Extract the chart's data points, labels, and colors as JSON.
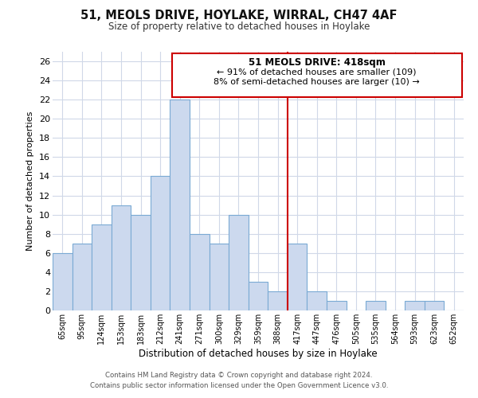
{
  "title": "51, MEOLS DRIVE, HOYLAKE, WIRRAL, CH47 4AF",
  "subtitle": "Size of property relative to detached houses in Hoylake",
  "xlabel": "Distribution of detached houses by size in Hoylake",
  "ylabel": "Number of detached properties",
  "bar_labels": [
    "65sqm",
    "95sqm",
    "124sqm",
    "153sqm",
    "183sqm",
    "212sqm",
    "241sqm",
    "271sqm",
    "300sqm",
    "329sqm",
    "359sqm",
    "388sqm",
    "417sqm",
    "447sqm",
    "476sqm",
    "505sqm",
    "535sqm",
    "564sqm",
    "593sqm",
    "623sqm",
    "652sqm"
  ],
  "bar_values": [
    6,
    7,
    9,
    11,
    10,
    14,
    22,
    8,
    7,
    10,
    3,
    2,
    7,
    2,
    1,
    0,
    1,
    0,
    1,
    1,
    0
  ],
  "bar_color": "#ccd9ee",
  "bar_edge_color": "#7aaad4",
  "property_line_color": "#cc0000",
  "ylim": [
    0,
    27
  ],
  "yticks": [
    0,
    2,
    4,
    6,
    8,
    10,
    12,
    14,
    16,
    18,
    20,
    22,
    24,
    26
  ],
  "annotation_title": "51 MEOLS DRIVE: 418sqm",
  "annotation_line1": "← 91% of detached houses are smaller (109)",
  "annotation_line2": "8% of semi-detached houses are larger (10) →",
  "annotation_box_color": "#ffffff",
  "annotation_box_edge": "#cc0000",
  "footer_line1": "Contains HM Land Registry data © Crown copyright and database right 2024.",
  "footer_line2": "Contains public sector information licensed under the Open Government Licence v3.0.",
  "background_color": "#ffffff",
  "grid_color": "#d0d8e8"
}
